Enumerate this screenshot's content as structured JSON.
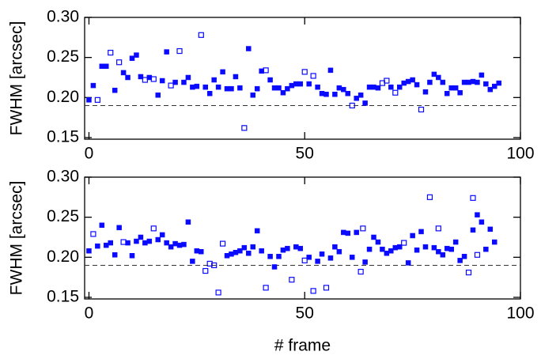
{
  "chart_data": [
    {
      "type": "scatter",
      "ylabel": "FWHM [arcsec]",
      "xlim": [
        -1,
        100
      ],
      "ylim": [
        0.148,
        0.3
      ],
      "xticks": [
        0,
        50,
        100
      ],
      "yticks": [
        0.15,
        {
          "value": 0.2,
          "label": "0.20"
        },
        0.25,
        {
          "value": 0.3,
          "label": "0.30"
        }
      ],
      "reference_line": 0.19,
      "series": [
        {
          "marker": "filled",
          "color": "#0a0aff",
          "x": [
            0,
            1,
            3,
            4,
            6,
            8,
            9,
            10,
            11,
            12,
            14,
            16,
            17,
            18,
            20,
            22,
            23,
            24,
            25,
            27,
            28,
            29,
            30,
            31,
            32,
            33,
            34,
            35,
            37,
            38,
            39,
            40,
            42,
            43,
            44,
            45,
            46,
            47,
            48,
            49,
            51,
            53,
            54,
            55,
            56,
            57,
            58,
            59,
            60,
            62,
            63,
            64,
            65,
            66,
            67,
            70,
            72,
            73,
            74,
            75,
            76,
            78,
            79,
            80,
            81,
            82,
            83,
            84,
            85,
            86,
            87,
            88,
            89,
            90,
            91,
            92,
            93,
            94,
            95
          ],
          "values": [
            0.197,
            0.215,
            0.239,
            0.239,
            0.209,
            0.231,
            0.225,
            0.249,
            0.253,
            0.226,
            0.225,
            0.203,
            0.221,
            0.257,
            0.219,
            0.219,
            0.225,
            0.213,
            0.214,
            0.213,
            0.205,
            0.222,
            0.213,
            0.232,
            0.211,
            0.211,
            0.226,
            0.212,
            0.261,
            0.203,
            0.211,
            0.233,
            0.222,
            0.212,
            0.212,
            0.206,
            0.211,
            0.215,
            0.217,
            0.217,
            0.217,
            0.213,
            0.205,
            0.204,
            0.234,
            0.204,
            0.212,
            0.21,
            0.205,
            0.199,
            0.203,
            0.193,
            0.213,
            0.213,
            0.212,
            0.213,
            0.213,
            0.218,
            0.22,
            0.222,
            0.216,
            0.207,
            0.219,
            0.229,
            0.225,
            0.219,
            0.205,
            0.212,
            0.212,
            0.206,
            0.219,
            0.219,
            0.22,
            0.219,
            0.228,
            0.217,
            0.21,
            0.214,
            0.218
          ]
        },
        {
          "marker": "open",
          "color": "#0a0aff",
          "x": [
            2,
            5,
            7,
            13,
            15,
            19,
            21,
            26,
            36,
            41,
            50,
            52,
            61,
            68,
            69,
            71,
            77
          ],
          "values": [
            0.197,
            0.256,
            0.244,
            0.222,
            0.223,
            0.215,
            0.258,
            0.278,
            0.162,
            0.234,
            0.232,
            0.227,
            0.19,
            0.218,
            0.221,
            0.206,
            0.185
          ]
        }
      ]
    },
    {
      "type": "scatter",
      "ylabel": "FWHM [arcsec]",
      "xlabel": "# frame",
      "xlim": [
        -1,
        100
      ],
      "ylim": [
        0.148,
        0.3
      ],
      "xticks": [
        0,
        50,
        100
      ],
      "yticks": [
        0.15,
        {
          "value": 0.2,
          "label": "0.20"
        },
        0.25,
        {
          "value": 0.3,
          "label": "0.30"
        }
      ],
      "reference_line": 0.19,
      "series": [
        {
          "marker": "filled",
          "color": "#0a0aff",
          "x": [
            0,
            2,
            3,
            4,
            5,
            6,
            7,
            9,
            10,
            11,
            12,
            13,
            14,
            16,
            17,
            18,
            19,
            20,
            21,
            22,
            23,
            24,
            25,
            26,
            32,
            33,
            34,
            35,
            36,
            37,
            38,
            39,
            40,
            42,
            43,
            44,
            45,
            46,
            48,
            49,
            51,
            53,
            54,
            56,
            57,
            58,
            59,
            60,
            61,
            62,
            64,
            65,
            66,
            67,
            68,
            69,
            70,
            71,
            72,
            74,
            75,
            76,
            77,
            78,
            80,
            81,
            82,
            83,
            84,
            85,
            86,
            87,
            89,
            90,
            91,
            92,
            93,
            94
          ],
          "values": [
            0.208,
            0.214,
            0.24,
            0.215,
            0.218,
            0.203,
            0.237,
            0.218,
            0.202,
            0.22,
            0.225,
            0.218,
            0.22,
            0.222,
            0.228,
            0.218,
            0.213,
            0.217,
            0.215,
            0.216,
            0.244,
            0.195,
            0.208,
            0.207,
            0.202,
            0.204,
            0.206,
            0.208,
            0.212,
            0.205,
            0.213,
            0.233,
            0.208,
            0.201,
            0.188,
            0.201,
            0.209,
            0.211,
            0.213,
            0.211,
            0.2,
            0.195,
            0.204,
            0.199,
            0.213,
            0.207,
            0.231,
            0.23,
            0.2,
            0.231,
            0.194,
            0.21,
            0.225,
            0.219,
            0.21,
            0.205,
            0.208,
            0.212,
            0.213,
            0.193,
            0.227,
            0.209,
            0.232,
            0.213,
            0.212,
            0.207,
            0.203,
            0.211,
            0.21,
            0.219,
            0.196,
            0.201,
            0.234,
            0.253,
            0.244,
            0.21,
            0.235,
            0.219
          ]
        },
        {
          "marker": "open",
          "color": "#0a0aff",
          "x": [
            1,
            8,
            15,
            27,
            28,
            29,
            30,
            31,
            41,
            47,
            50,
            52,
            55,
            63,
            73,
            79,
            81,
            88,
            89,
            90,
            63.5
          ],
          "values": [
            0.229,
            0.219,
            0.236,
            0.183,
            0.192,
            0.19,
            0.156,
            0.217,
            0.162,
            0.172,
            0.196,
            0.158,
            0.162,
            0.182,
            0.218,
            0.275,
            0.236,
            0.181,
            0.274,
            0.203,
            0.236
          ]
        }
      ]
    }
  ]
}
